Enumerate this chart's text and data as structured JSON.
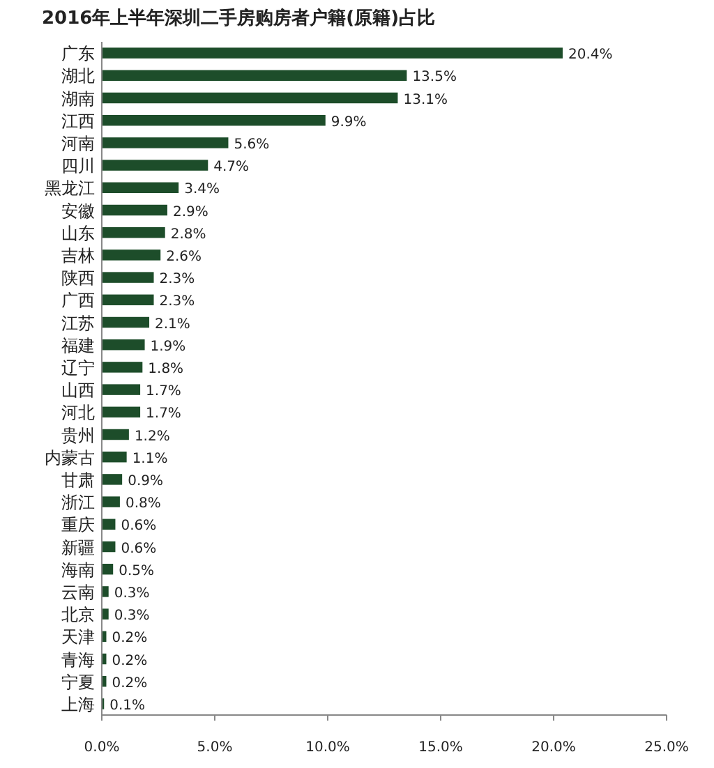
{
  "chart_data": {
    "type": "bar",
    "orientation": "horizontal",
    "title": "2016年上半年深圳二手房购房者户籍(原籍)占比",
    "categories": [
      "广东",
      "湖北",
      "湖南",
      "江西",
      "河南",
      "四川",
      "黑龙江",
      "安徽",
      "山东",
      "吉林",
      "陕西",
      "广西",
      "江苏",
      "福建",
      "辽宁",
      "山西",
      "河北",
      "贵州",
      "内蒙古",
      "甘肃",
      "浙江",
      "重庆",
      "新疆",
      "海南",
      "云南",
      "北京",
      "天津",
      "青海",
      "宁夏",
      "上海"
    ],
    "values": [
      20.4,
      13.5,
      13.1,
      9.9,
      5.6,
      4.7,
      3.4,
      2.9,
      2.8,
      2.6,
      2.3,
      2.3,
      2.1,
      1.9,
      1.8,
      1.7,
      1.7,
      1.2,
      1.1,
      0.9,
      0.8,
      0.6,
      0.6,
      0.5,
      0.3,
      0.3,
      0.2,
      0.2,
      0.2,
      0.1
    ],
    "value_labels": [
      "20.4%",
      "13.5%",
      "13.1%",
      "9.9%",
      "5.6%",
      "4.7%",
      "3.4%",
      "2.9%",
      "2.8%",
      "2.6%",
      "2.3%",
      "2.3%",
      "2.1%",
      "1.9%",
      "1.8%",
      "1.7%",
      "1.7%",
      "1.2%",
      "1.1%",
      "0.9%",
      "0.8%",
      "0.6%",
      "0.6%",
      "0.5%",
      "0.3%",
      "0.3%",
      "0.2%",
      "0.2%",
      "0.2%",
      "0.1%"
    ],
    "color": "#1d4d2a",
    "xlim": [
      0,
      25
    ],
    "xticks": [
      {
        "value": 0,
        "label": "0.0%"
      },
      {
        "value": 5,
        "label": "5.0%"
      },
      {
        "value": 10,
        "label": "10.0%"
      },
      {
        "value": 15,
        "label": "15.0%"
      },
      {
        "value": 20,
        "label": "20.0%"
      },
      {
        "value": 25,
        "label": "25.0%"
      }
    ]
  }
}
